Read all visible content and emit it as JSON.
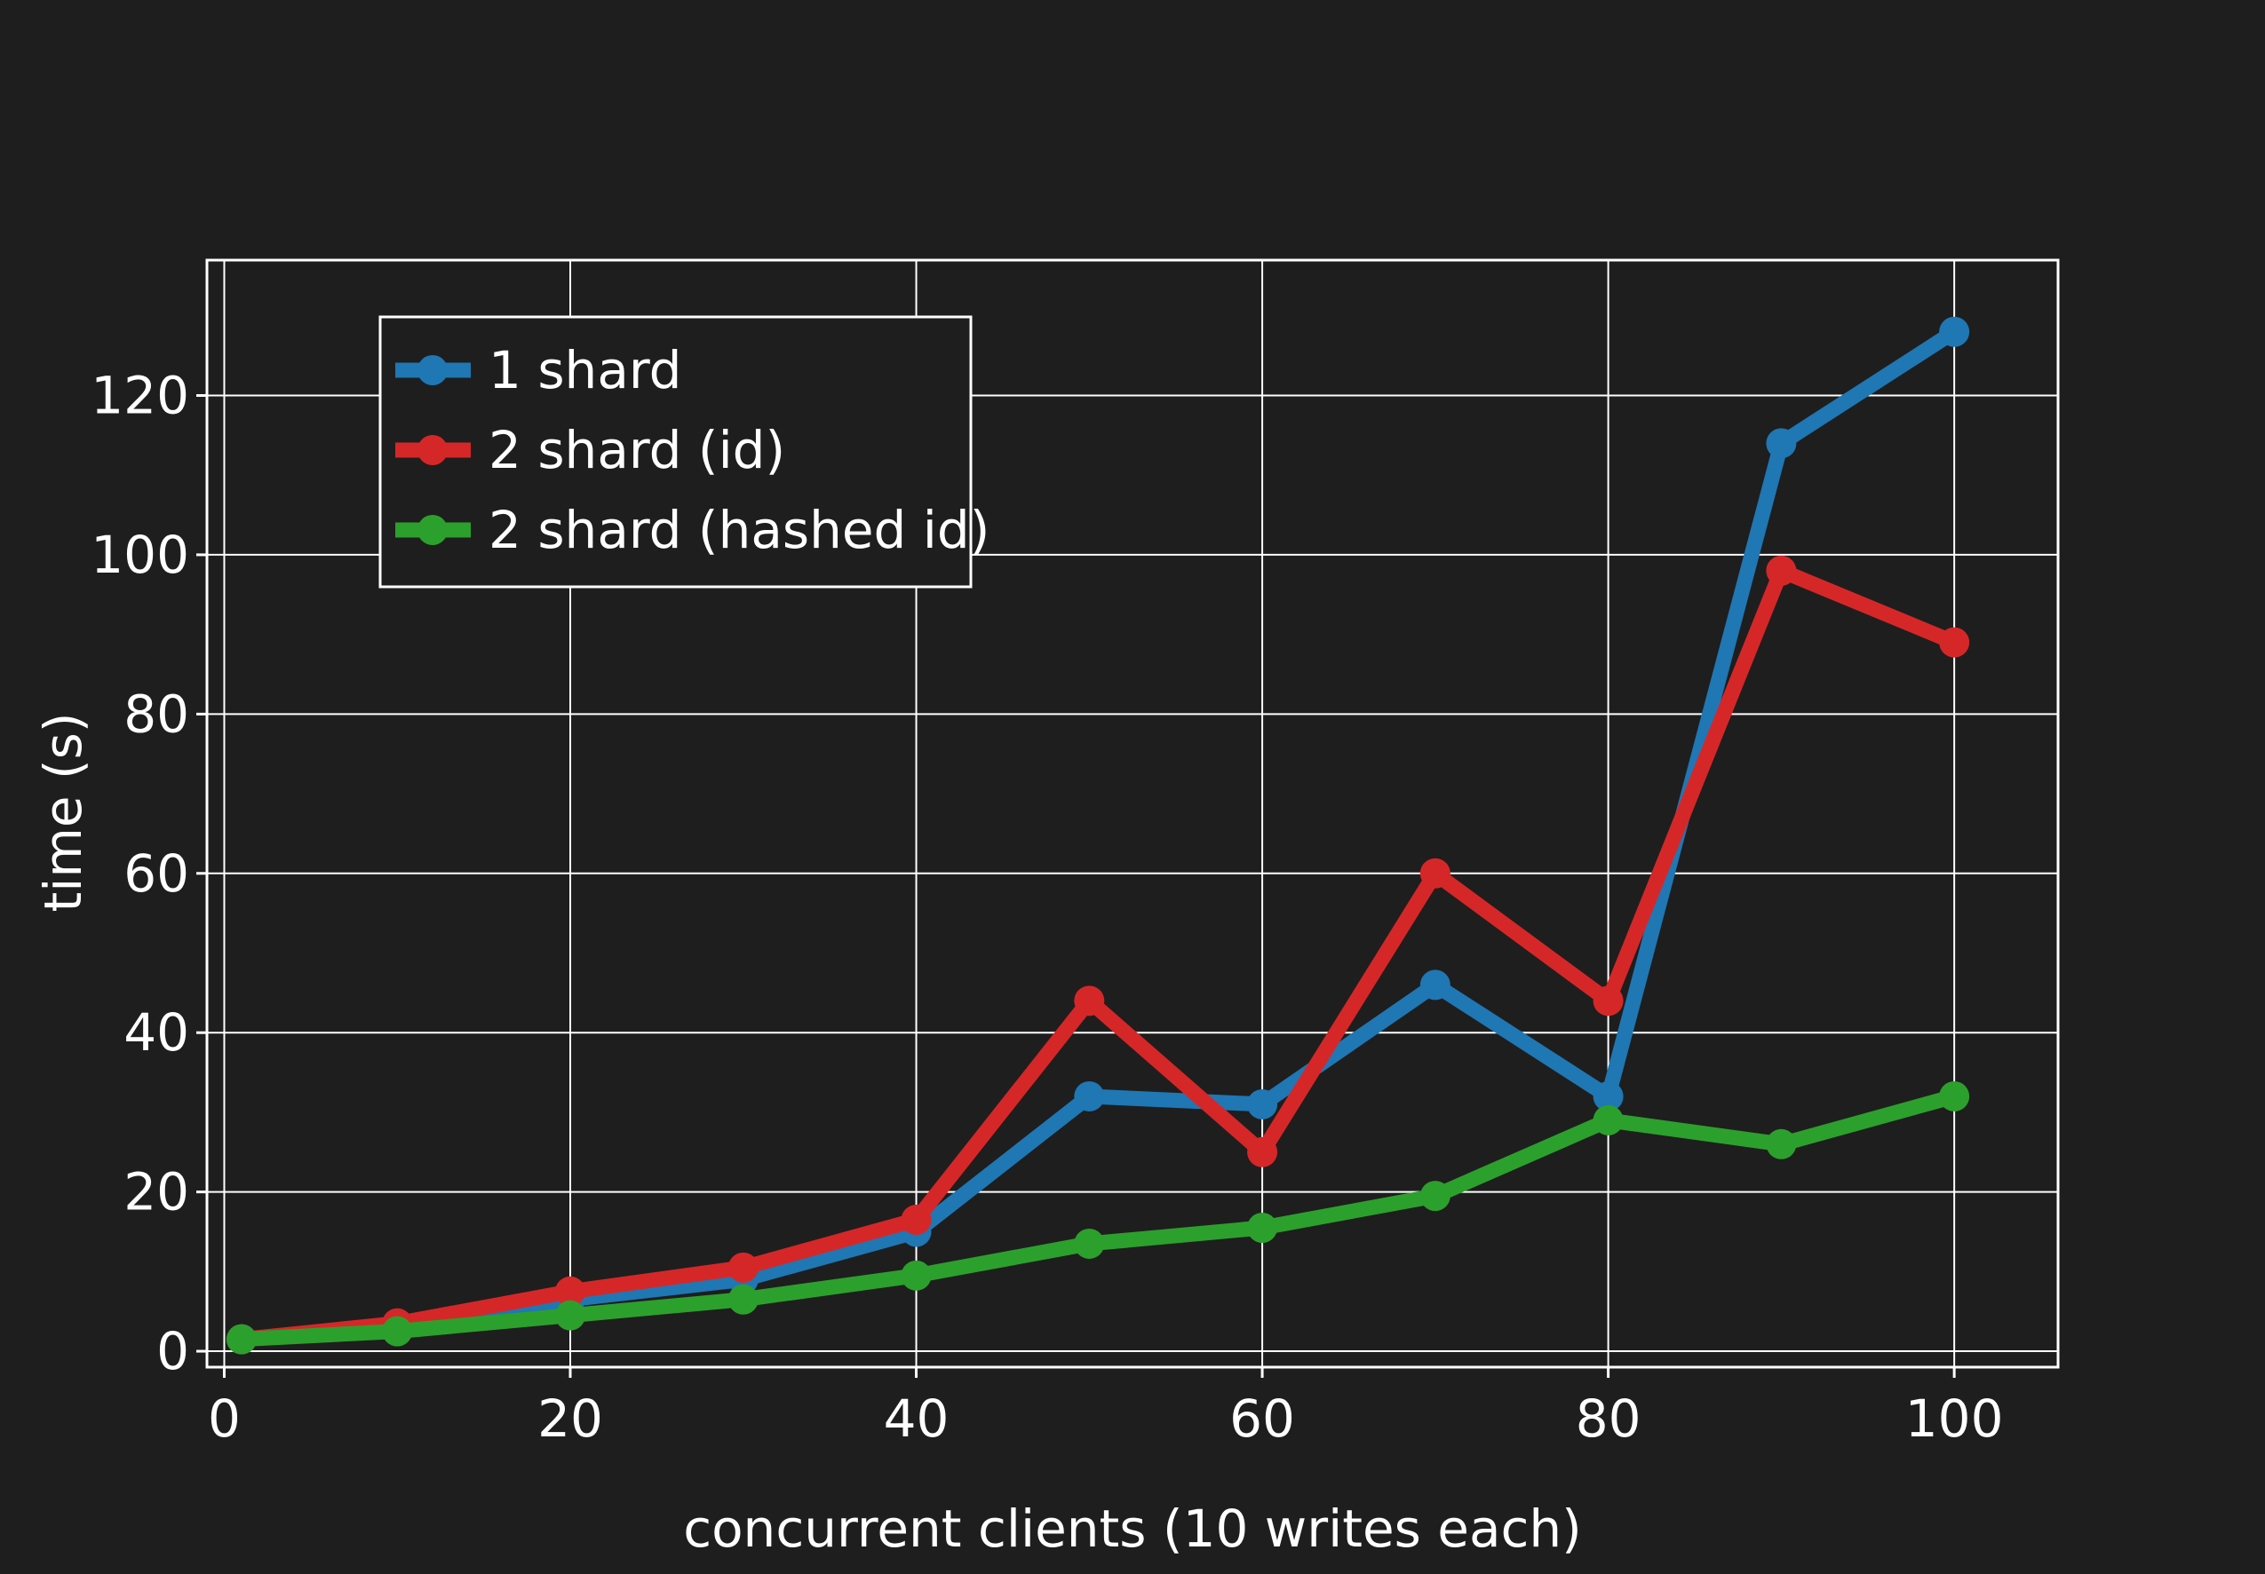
{
  "chart_data": {
    "type": "line",
    "title": "",
    "xlabel": "concurrent clients (10 writes each)",
    "ylabel": "time (s)",
    "xlim": [
      -1,
      106
    ],
    "ylim": [
      -2,
      137
    ],
    "xticks": [
      0,
      20,
      40,
      60,
      80,
      100
    ],
    "yticks": [
      0,
      20,
      40,
      60,
      80,
      100,
      120
    ],
    "grid": true,
    "legend_position": "top-left",
    "x": [
      1,
      10,
      20,
      30,
      40,
      50,
      60,
      70,
      80,
      90,
      100
    ],
    "series": [
      {
        "name": "1 shard",
        "color": "#1f77b4",
        "values": [
          1.5,
          3,
          6.5,
          9,
          15,
          32,
          31,
          46,
          32,
          114,
          128
        ]
      },
      {
        "name": "2 shard (id)",
        "color": "#d62728",
        "values": [
          1.5,
          3.5,
          7.5,
          10.5,
          16.5,
          44,
          25,
          60,
          44,
          98,
          89
        ]
      },
      {
        "name": "2 shard (hashed id)",
        "color": "#2ca02c",
        "values": [
          1.5,
          2.5,
          4.5,
          6.5,
          9.5,
          13.5,
          15.5,
          19.5,
          29,
          26,
          32
        ]
      }
    ]
  }
}
